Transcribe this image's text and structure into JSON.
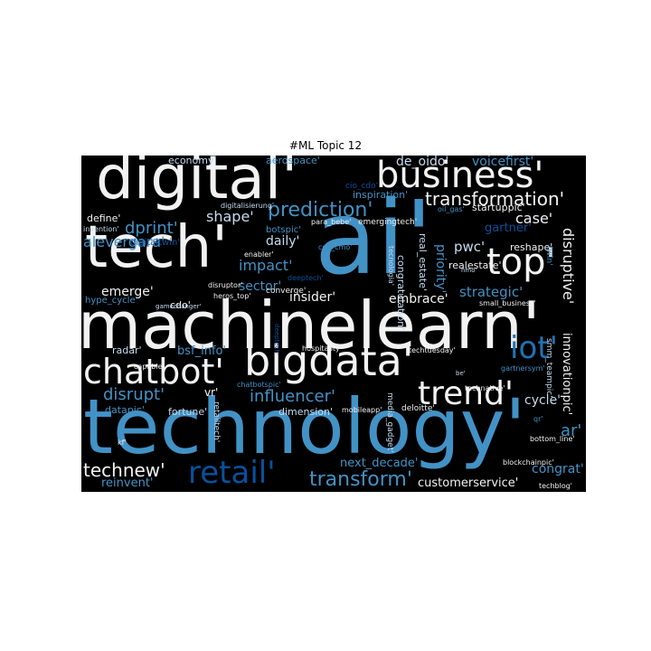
{
  "figure": {
    "title": "#ML Topic 12"
  },
  "colors": {
    "white": "#f2f2f2",
    "light_blue": "#c6dbef",
    "mid_blue": "#4292c6",
    "dark_blue": "#08519c",
    "background": "#000000"
  },
  "words": {
    "ai": "ai'",
    "technology": "technology'",
    "machinelearn": "machinelearn'",
    "digital": "digital'",
    "tech": "tech'",
    "business": "business'",
    "bigdata": "bigdata'",
    "chatbot": "chatbot'",
    "top": "top'",
    "trend": "trend'",
    "retail": "retail'",
    "iot": "iot'",
    "prediction": "prediction'",
    "transformation": "transformation'",
    "voicefirst": "voicefirst'",
    "de_oido": "de_oido'",
    "transform": "transform'",
    "technew": "technew'",
    "influencer": "influencer'",
    "disrupt": "disrupt'",
    "dprint": "dprint'",
    "alevergara": "alevergara'",
    "shape": "shape'",
    "impact": "impact'",
    "daily": "daily'",
    "sector": "sector'",
    "emerge": "emerge'",
    "insider": "insider'",
    "embrace": "embrace'",
    "strategic": "strategic'",
    "pwc": "pwc'",
    "case": "case'",
    "cycle": "cycle'",
    "ar": "ar'",
    "congrat": "congrat'",
    "next_decade": "next_decade'",
    "customerservice": "customerservice'",
    "reinvent": "reinvent'",
    "economy": "economy'",
    "aerospace": "aerospace'",
    "inspiration": "inspiration'",
    "startuppic": "startuppic'",
    "gartner": "gartner'",
    "realestate": "realestate'",
    "reshape": "reshape'",
    "define": "define'",
    "digitaltwin": "digitaltwin'",
    "cdo": "cdo'",
    "radar": "radar'",
    "bsf_info": "bsf_info'",
    "fortune": "fortune'",
    "datapic": "datapic'",
    "dimension": "dimension'",
    "vr": "vr'",
    "emergingtech": "emergingtech'",
    "botspic": "botspic'",
    "digitalisierung": "digitalisierung'",
    "invention": "invention'",
    "cio_cdo": "cio_cdo'",
    "para_bebe": "para_bebe'",
    "ceo_cmo": "ceo_cmo'",
    "enabler": "enabler'",
    "disruptor": "disruptor'",
    "heros_top": "heros_top'",
    "converge": "converge'",
    "deeptech": "deeptech'",
    "hospitality": "hospitality'",
    "techtuesday": "techtuesday'",
    "small_business": "small_business'",
    "congratulation": "congratulation'",
    "real_estate": "real_estate'",
    "priority": "priority'",
    "disruptive": "disruptive'",
    "innovationpic": "innovationpic'",
    "smm_teampic": "smm_teampic'",
    "twin": "twin'",
    "technative": "technative'",
    "deloitte": "deloitte'",
    "mobileapp": "mobileapp'",
    "media_gadget": "media_gadget'",
    "bottom_line": "bottom_line'",
    "blockchainpic": "blockchainpic'",
    "techblog": "techblog'",
    "retailtech": "retailtech'",
    "capable": "capable'",
    "hype_cycle": "hype_cycle'",
    "gamechanger": "gamechanger'",
    "chatbotspic": "chatbotspic'",
    "kf": "kf'",
    "gartnersym": "gartnersym'",
    "tecnologia": "tecnologia'",
    "qr": "qr'",
    "nmo": "nmo'",
    "be": "be'",
    "oil_gas": "oil_gas'"
  }
}
